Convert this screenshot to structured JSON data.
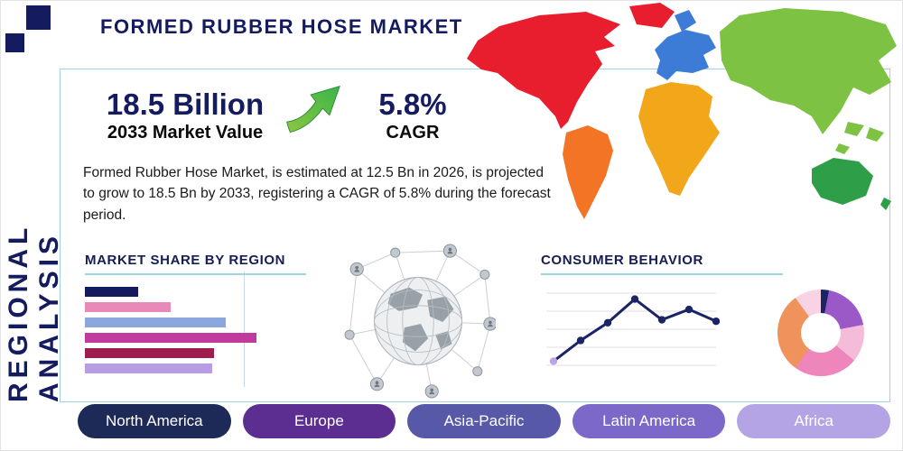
{
  "page": {
    "title": "FORMED RUBBER HOSE MARKET",
    "side_label": "REGIONAL ANALYSIS",
    "theme": {
      "navy": "#141b5e",
      "underline_blue": "#9fd4e8",
      "arrow_green": "#6db33f"
    },
    "icons": {
      "growth_arrow": "curved-up-right-arrow"
    }
  },
  "stats": {
    "market_value": "18.5 Billion",
    "market_value_label": "2033 Market Value",
    "cagr_value": "5.8%",
    "cagr_label": "CAGR"
  },
  "description": "Formed Rubber Hose Market, is estimated at 12.5 Bn in 2026, is projected to grow to 18.5 Bn by 2033, registering a CAGR of 5.8% during the forecast period.",
  "map": {
    "regions": [
      {
        "name": "north-america",
        "color": "#e81d2d"
      },
      {
        "name": "greenland",
        "color": "#e81d2d"
      },
      {
        "name": "south-america",
        "color": "#f47426"
      },
      {
        "name": "europe",
        "color": "#3d7cd6"
      },
      {
        "name": "africa",
        "color": "#f2a71b"
      },
      {
        "name": "asia",
        "color": "#7dc242"
      },
      {
        "name": "southeast-asia",
        "color": "#7dc242"
      },
      {
        "name": "australia",
        "color": "#2f9e49"
      }
    ]
  },
  "chart_data": [
    {
      "type": "bar",
      "title": "MARKET SHARE BY REGION",
      "orientation": "horizontal",
      "categories": [
        "bar-1",
        "bar-2",
        "bar-3",
        "bar-4",
        "bar-5",
        "bar-6"
      ],
      "values": [
        31,
        50,
        82,
        100,
        75,
        74
      ],
      "colors": [
        "#141a5e",
        "#e989b9",
        "#8ba7dd",
        "#c13a9e",
        "#9e1c4e",
        "#b79de3"
      ],
      "xlim": [
        0,
        100
      ],
      "grid": false
    },
    {
      "type": "line",
      "title": "CONSUMER BEHAVIOR",
      "x": [
        1,
        2,
        3,
        4,
        5,
        6,
        7
      ],
      "y": [
        8,
        36,
        60,
        92,
        64,
        78,
        62
      ],
      "ylim": [
        0,
        100
      ],
      "line_color": "#1b2566",
      "first_point_color": "#b9a5e8",
      "grid": true
    },
    {
      "type": "pie",
      "donut": true,
      "values": [
        3,
        19,
        14,
        24,
        30,
        10
      ],
      "colors": [
        "#1b2566",
        "#9b59c8",
        "#f4bcd9",
        "#ef86bb",
        "#f0925c",
        "#f8d3e3"
      ]
    }
  ],
  "region_buttons": [
    {
      "label": "North America",
      "color": "#1d2a57"
    },
    {
      "label": "Europe",
      "color": "#5c2e91"
    },
    {
      "label": "Asia-Pacific",
      "color": "#5759a8"
    },
    {
      "label": "Latin America",
      "color": "#7b68c9"
    },
    {
      "label": "Africa",
      "color": "#b4a4e6"
    }
  ]
}
